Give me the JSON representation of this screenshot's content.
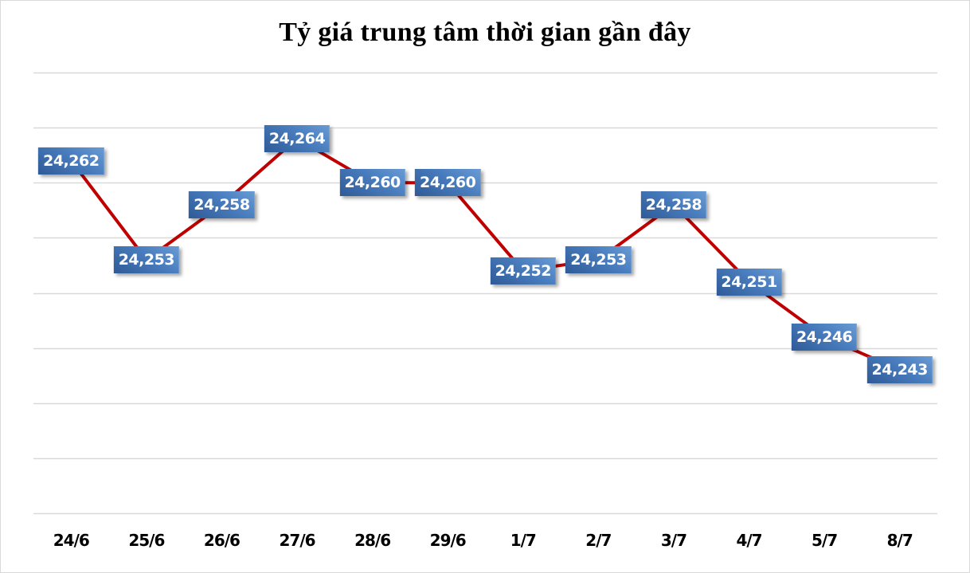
{
  "chart_data": {
    "type": "line",
    "title": "Tỷ giá trung tâm thời gian gần đây",
    "xlabel": "",
    "ylabel": "",
    "categories": [
      "24/6",
      "25/6",
      "26/6",
      "27/6",
      "28/6",
      "29/6",
      "1/7",
      "2/7",
      "3/7",
      "4/7",
      "5/7",
      "8/7"
    ],
    "series": [
      {
        "name": "Tỷ giá trung tâm",
        "values": [
          24262,
          24253,
          24258,
          24264,
          24260,
          24260,
          24252,
          24253,
          24258,
          24251,
          24246,
          24243
        ],
        "color": "#c00000"
      }
    ],
    "value_labels": [
      "24,262",
      "24,253",
      "24,258",
      "24,264",
      "24,260",
      "24,260",
      "24,252",
      "24,253",
      "24,258",
      "24,251",
      "24,246",
      "24,243"
    ],
    "ylim": [
      24230,
      24270
    ],
    "y_gridline_step": 5,
    "grid": true,
    "y_axis_labels_visible": false,
    "legend": "none",
    "label_style": {
      "background": "#3f6fae",
      "text_color": "#ffffff"
    },
    "gridline_color": "#d9d9d9"
  }
}
